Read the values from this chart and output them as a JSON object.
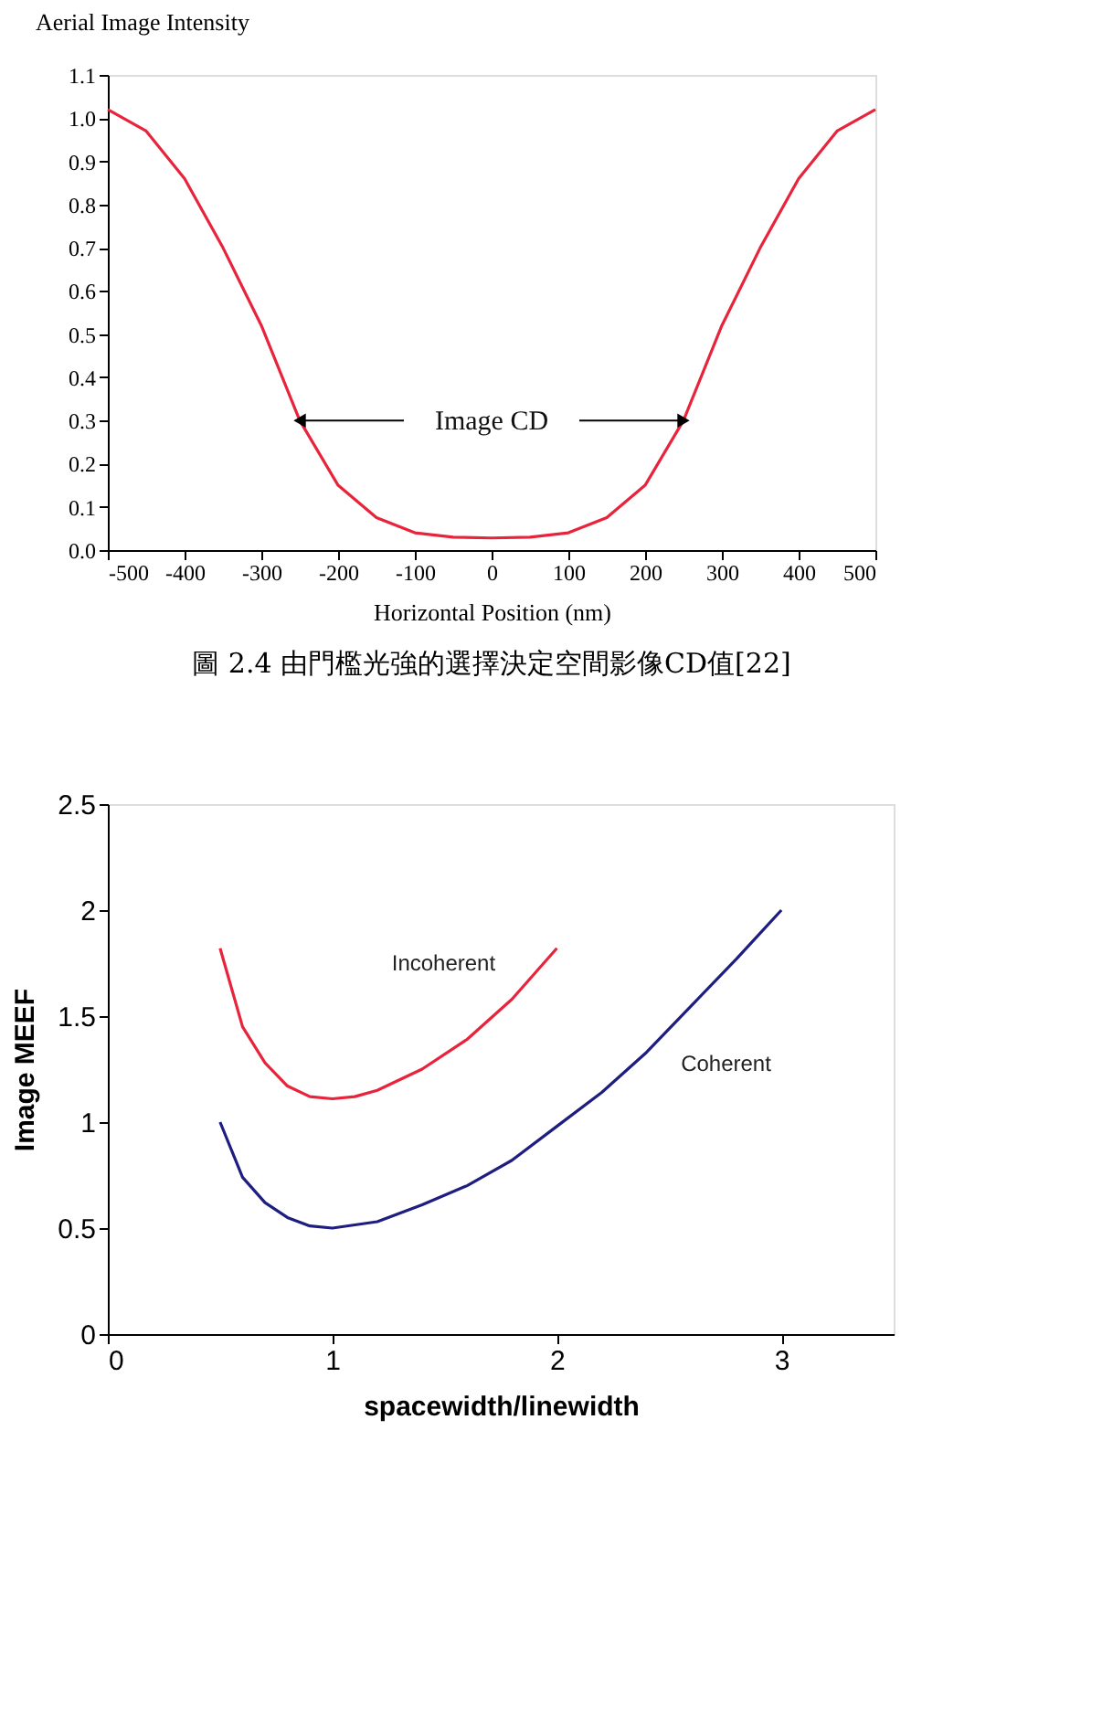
{
  "chart_data": [
    {
      "type": "line",
      "ylabel": "Aerial Image Intensity",
      "xlabel": "Horizontal Position (nm)",
      "xlim": [
        -500,
        500
      ],
      "xticks": [
        -500,
        -400,
        -300,
        -200,
        -100,
        0,
        100,
        200,
        300,
        400,
        500
      ],
      "ylim": [
        0,
        1.1
      ],
      "yticks": [
        {
          "value": 0,
          "label": "0.0"
        },
        0.1,
        0.2,
        0.3,
        0.4,
        0.5,
        0.6,
        0.7,
        0.8,
        0.9,
        {
          "value": 1,
          "label": "1.0"
        },
        1.1
      ],
      "grid": false,
      "series": [
        {
          "color": "#e8243c",
          "x": [
            -500,
            -450,
            -400,
            -350,
            -300,
            -250,
            -200,
            -150,
            -100,
            -50,
            0,
            50,
            100,
            150,
            200,
            250,
            300,
            350,
            400,
            450,
            500
          ],
          "values": [
            1.02,
            0.97,
            0.86,
            0.7,
            0.52,
            0.3,
            0.15,
            0.075,
            0.04,
            0.03,
            0.028,
            0.03,
            0.04,
            0.075,
            0.15,
            0.3,
            0.52,
            0.7,
            0.86,
            0.97,
            1.02
          ]
        }
      ],
      "ref_lines": [
        {
          "axis": "y",
          "value": 0.3,
          "label": "Image CD"
        }
      ],
      "annotations": [
        "圖 2.4 由門檻光強的選擇決定空間影像CD值[22]"
      ]
    },
    {
      "type": "line",
      "ylabel": "Image MEEF",
      "xlabel": "spacewidth/linewidth",
      "xlim": [
        0,
        3.5
      ],
      "xticks": [
        0,
        1,
        2,
        3
      ],
      "ylim": [
        0,
        2.5
      ],
      "yticks": [
        0,
        0.5,
        1,
        1.5,
        2,
        2.5
      ],
      "grid": false,
      "series": [
        {
          "name": "Incoherent",
          "color": "#e8243c",
          "x": [
            0.5,
            0.6,
            0.7,
            0.8,
            0.9,
            1.0,
            1.1,
            1.2,
            1.4,
            1.6,
            1.8,
            2.0
          ],
          "values": [
            1.82,
            1.45,
            1.28,
            1.17,
            1.12,
            1.11,
            1.12,
            1.15,
            1.25,
            1.39,
            1.58,
            1.82
          ]
        },
        {
          "name": "Coherent",
          "color": "#1e1e80",
          "x": [
            0.5,
            0.6,
            0.7,
            0.8,
            0.9,
            1.0,
            1.2,
            1.4,
            1.6,
            1.8,
            2.0,
            2.2,
            2.4,
            2.6,
            2.8,
            3.0
          ],
          "values": [
            1.0,
            0.74,
            0.62,
            0.55,
            0.51,
            0.5,
            0.53,
            0.61,
            0.7,
            0.82,
            0.98,
            1.14,
            1.33,
            1.55,
            1.77,
            2.0
          ]
        }
      ]
    }
  ]
}
